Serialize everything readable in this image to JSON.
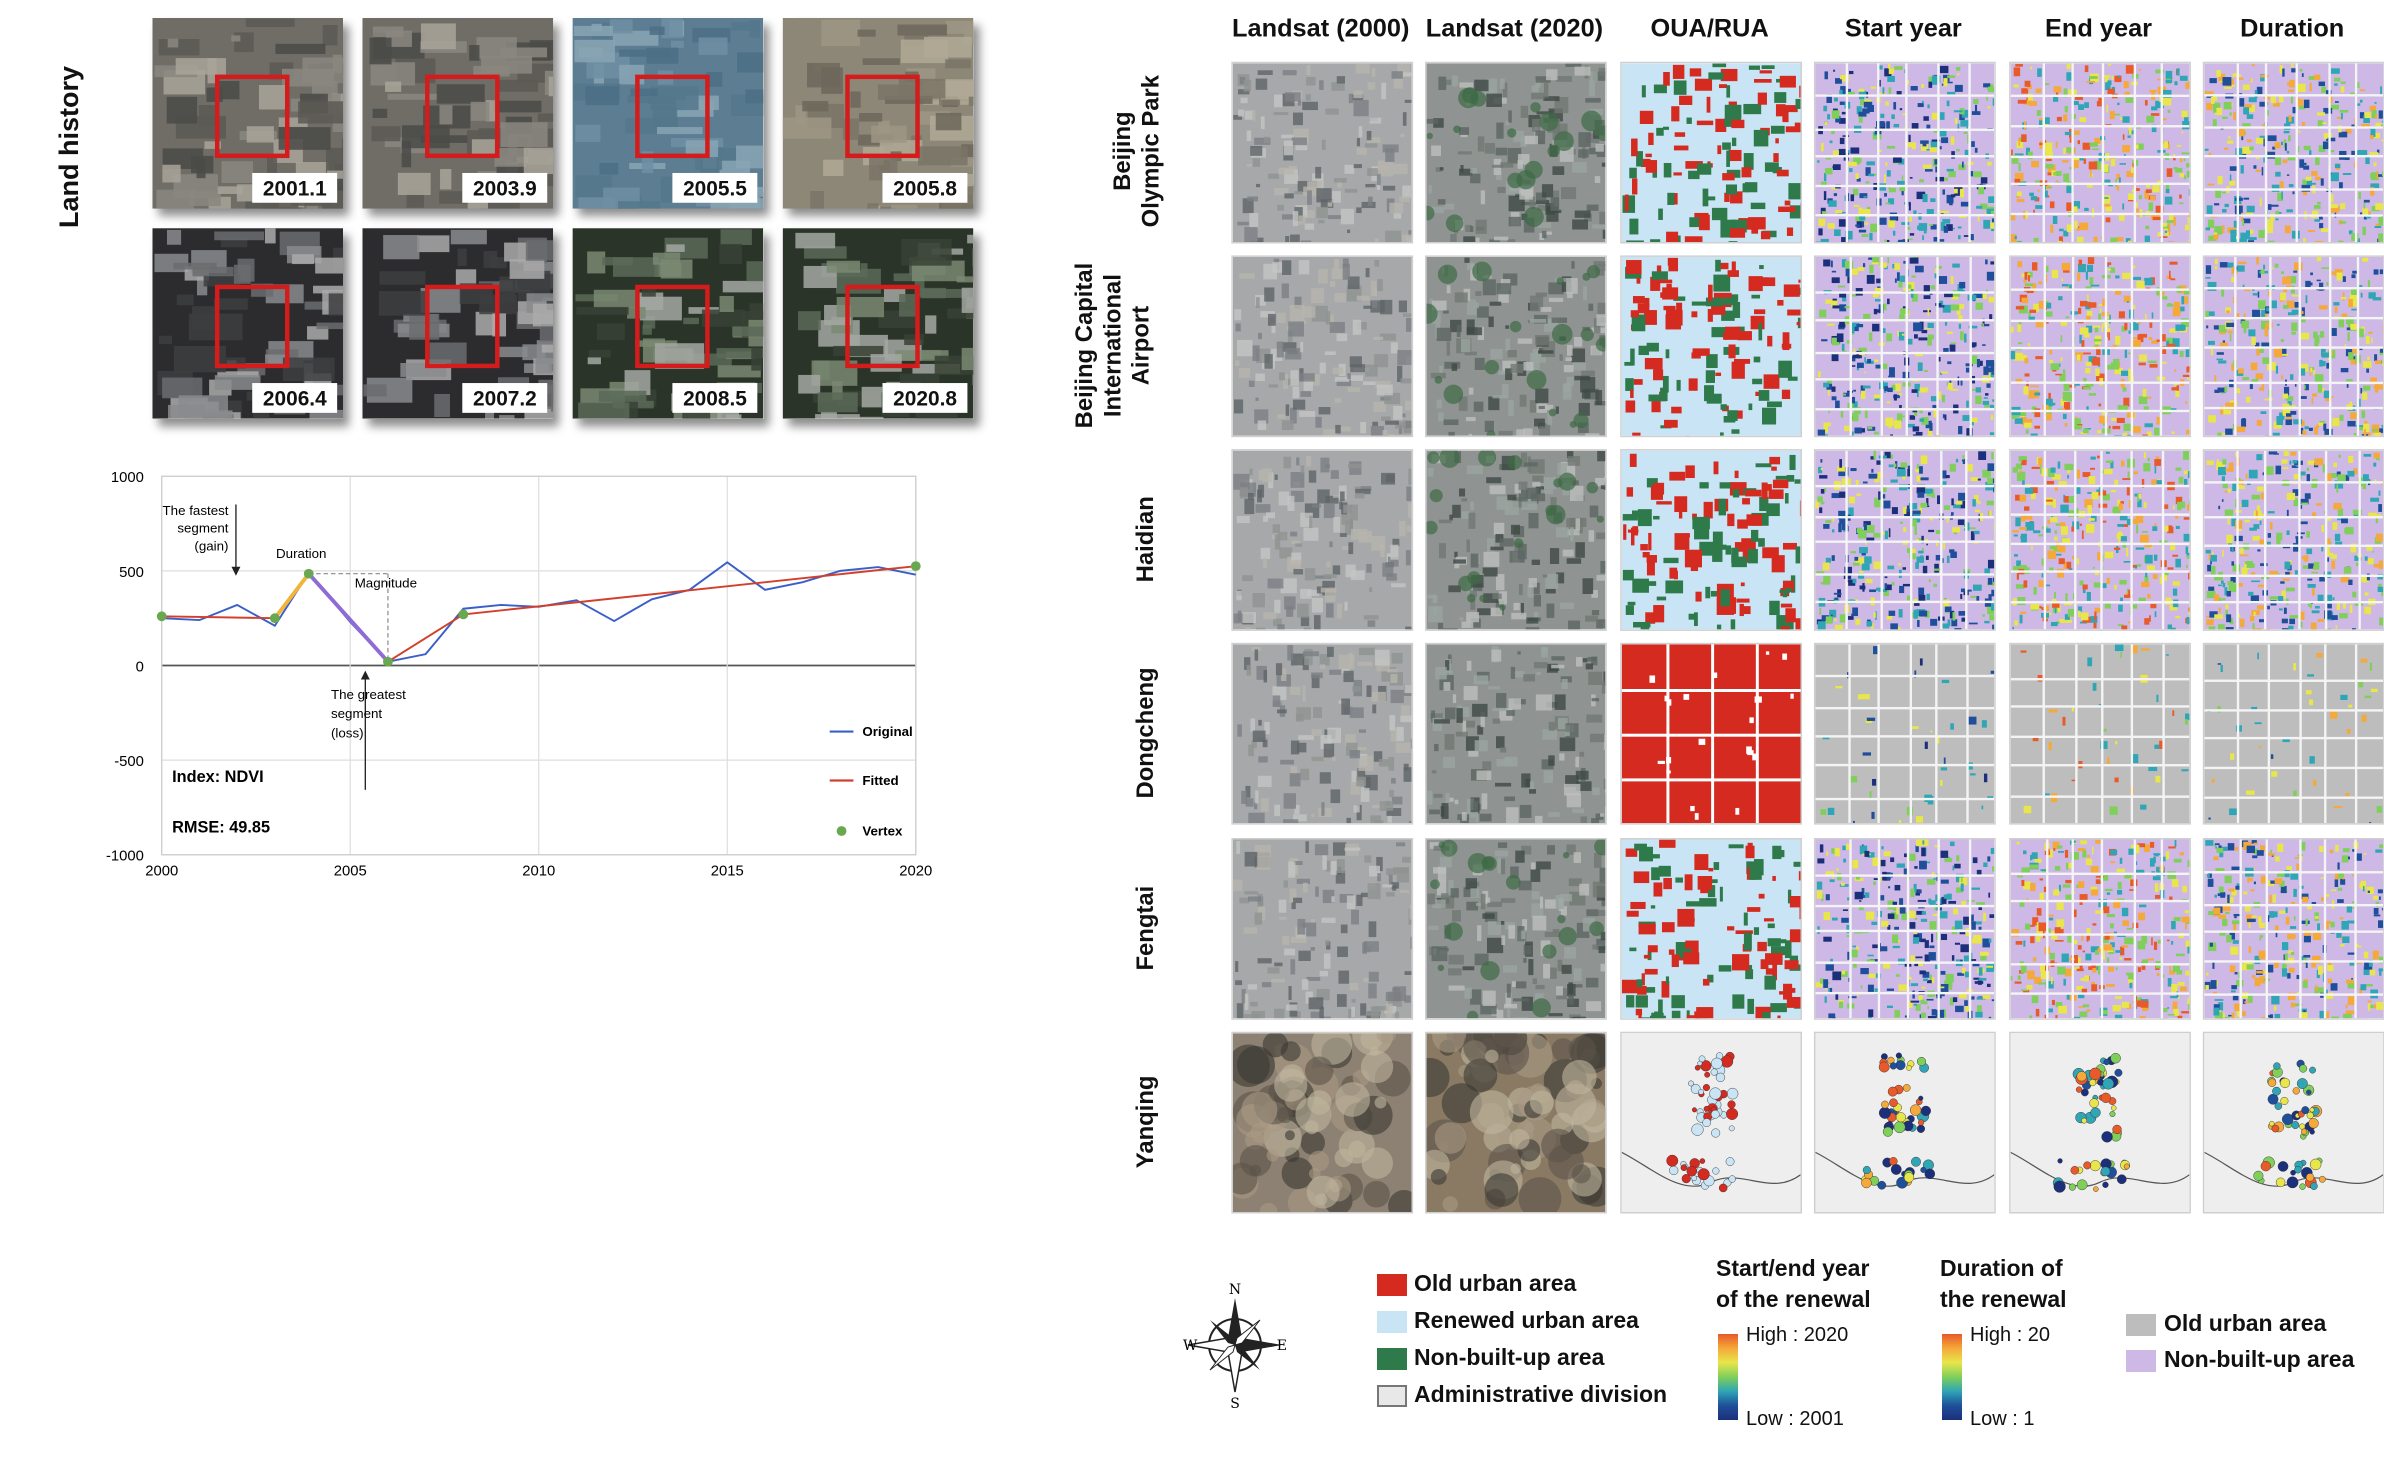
{
  "land_history": {
    "label": "Land history",
    "thumbnails": [
      {
        "date": "2001.1",
        "style": "industrial"
      },
      {
        "date": "2003.9",
        "style": "industrial"
      },
      {
        "date": "2005.5",
        "style": "blue"
      },
      {
        "date": "2005.8",
        "style": "bare"
      },
      {
        "date": "2006.4",
        "style": "residential"
      },
      {
        "date": "2007.2",
        "style": "residential"
      },
      {
        "date": "2008.5",
        "style": "residential-green"
      },
      {
        "date": "2020.8",
        "style": "residential-green"
      }
    ]
  },
  "chart_data": {
    "type": "line",
    "x_ticks": [
      2000,
      2005,
      2010,
      2015,
      2020
    ],
    "y_ticks": [
      1000,
      500,
      0,
      -500,
      -1000
    ],
    "xlim": [
      2000,
      2020
    ],
    "ylim": [
      -1000,
      1000
    ],
    "grid": true,
    "legend_position": "bottom-right",
    "series": [
      {
        "name": "Original",
        "color": "#3b5fc8",
        "x": [
          2000,
          2001,
          2002,
          2003,
          2003.9,
          2005,
          2006,
          2007,
          2008,
          2009,
          2010,
          2011,
          2012,
          2013,
          2014,
          2015,
          2016,
          2017,
          2018,
          2019,
          2020
        ],
        "y": [
          250,
          240,
          320,
          210,
          490,
          230,
          20,
          60,
          300,
          320,
          310,
          345,
          235,
          350,
          400,
          545,
          400,
          440,
          500,
          520,
          480
        ]
      },
      {
        "name": "Fitted",
        "color": "#d2402b",
        "x": [
          2000,
          2003,
          2003.9,
          2006,
          2008,
          2020
        ],
        "y": [
          260,
          250,
          485,
          20,
          270,
          525
        ]
      },
      {
        "name": "Vertex",
        "color": "#6aa84f",
        "x": [
          2000,
          2003,
          2003.9,
          2006,
          2008,
          2020
        ],
        "y": [
          260,
          250,
          485,
          20,
          270,
          525
        ]
      }
    ],
    "highlight_segments": [
      {
        "label": "gain",
        "color": "#f0b53a",
        "x": [
          2003,
          2003.9
        ],
        "y": [
          250,
          485
        ]
      },
      {
        "label": "loss",
        "color": "#8e6bd6",
        "x": [
          2003.9,
          2006
        ],
        "y": [
          485,
          20
        ]
      }
    ],
    "annotations": {
      "fastest_line1": "The fastest",
      "fastest_line2": "segment",
      "fastest_line3": "(gain)",
      "duration": "Duration",
      "magnitude": "Magnitude",
      "greatest_line1": "The greatest",
      "greatest_line2": "segment",
      "greatest_line3": "(loss)",
      "index": "Index: NDVI",
      "rmse": "RMSE: 49.85"
    }
  },
  "grid": {
    "columns": [
      "Landsat (2000)",
      "Landsat (2020)",
      "OUA/RUA",
      "Start year",
      "End year",
      "Duration"
    ],
    "rows": [
      {
        "label1": "Beijing",
        "label2": "Olympic Park"
      },
      {
        "label1": "Beijing Capital",
        "label2": "International",
        "label3": "Airport"
      },
      {
        "label1": "Haidian"
      },
      {
        "label1": "Dongcheng"
      },
      {
        "label1": "Fengtai"
      },
      {
        "label1": "Yanqing"
      }
    ]
  },
  "legend": {
    "compass": {
      "n": "N",
      "s": "S",
      "e": "E",
      "w": "W"
    },
    "categories": [
      {
        "label": "Old urban area",
        "color": "#d42a1f"
      },
      {
        "label": "Renewed urban area",
        "color": "#c9e4f5"
      },
      {
        "label": "Non-built-up area",
        "color": "#2f7a4a"
      },
      {
        "label": "Administrative division",
        "color": "#e8e8e8"
      }
    ],
    "year_title1": "Start/end year",
    "year_title2": "of the renewal",
    "year_high": "High : 2020",
    "year_low": "Low : 2001",
    "duration_title1": "Duration of",
    "duration_title2": "the renewal",
    "duration_high": "High : 20",
    "duration_low": "Low : 1",
    "extra": [
      {
        "label": "Old urban area",
        "color": "#bdbdbd"
      },
      {
        "label": "Non-built-up area",
        "color": "#cdb8e6"
      }
    ]
  }
}
